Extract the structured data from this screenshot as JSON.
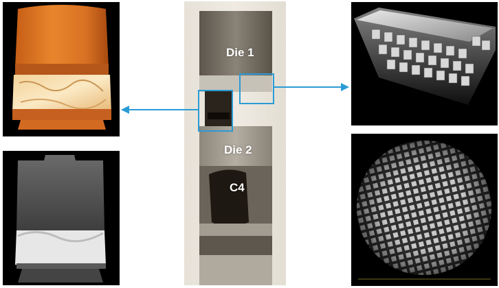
{
  "stack": {
    "labels": {
      "die1": "Die 1",
      "die2": "Die 2",
      "c4": "C4"
    }
  },
  "accent_color": "#2a9bd6",
  "panels": [
    {
      "name": "orange-3d-render",
      "description_icon": "die-stack-3d-render"
    },
    {
      "name": "grayscale-cross-section",
      "description_icon": "xray-cross-section"
    },
    {
      "name": "bump-array-3d",
      "description_icon": "micro-bump-3d"
    },
    {
      "name": "bump-grid-topview",
      "description_icon": "bump-grid-slice"
    }
  ]
}
